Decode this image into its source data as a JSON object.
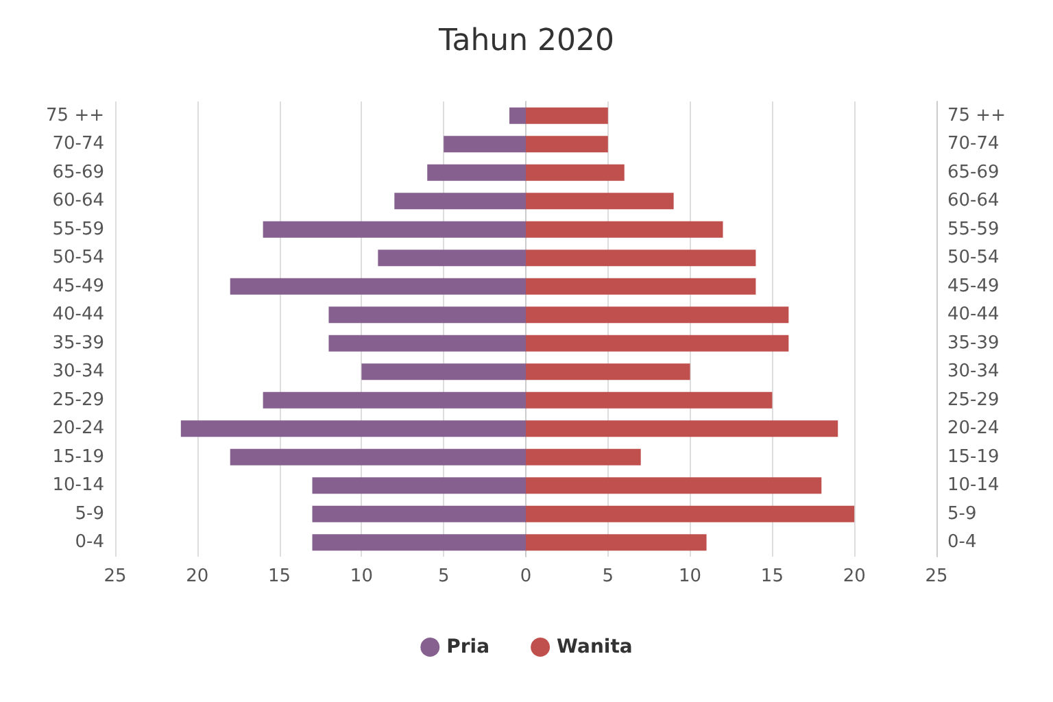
{
  "chart_data": {
    "type": "bar",
    "title": "Tahun 2020",
    "orientation": "horizontal",
    "stacked": true,
    "categories": [
      "75 ++",
      "70-74",
      "65-69",
      "60-64",
      "55-59",
      "50-54",
      "45-49",
      "40-44",
      "35-39",
      "30-34",
      "25-29",
      "20-24",
      "15-19",
      "10-14",
      "5-9",
      "0-4"
    ],
    "series": [
      {
        "name": "Pria",
        "color": "#86618f",
        "values": [
          -1,
          -5,
          -6,
          -8,
          -16,
          -9,
          -18,
          -12,
          -12,
          -10,
          -16,
          -21,
          -18,
          -13,
          -13,
          -13
        ]
      },
      {
        "name": "Wanita",
        "color": "#c0504d",
        "values": [
          5,
          5,
          6,
          9,
          12,
          14,
          14,
          16,
          16,
          10,
          15,
          19,
          7,
          18,
          20,
          11
        ]
      }
    ],
    "xlim": [
      -25,
      25
    ],
    "xticks": [
      {
        "value": -25,
        "label": "25"
      },
      {
        "value": -20,
        "label": "20"
      },
      {
        "value": -15,
        "label": "15"
      },
      {
        "value": -10,
        "label": "10"
      },
      {
        "value": -5,
        "label": "5"
      },
      0,
      5,
      10,
      15,
      20,
      25
    ],
    "grid": "x",
    "legend": "bottom"
  }
}
